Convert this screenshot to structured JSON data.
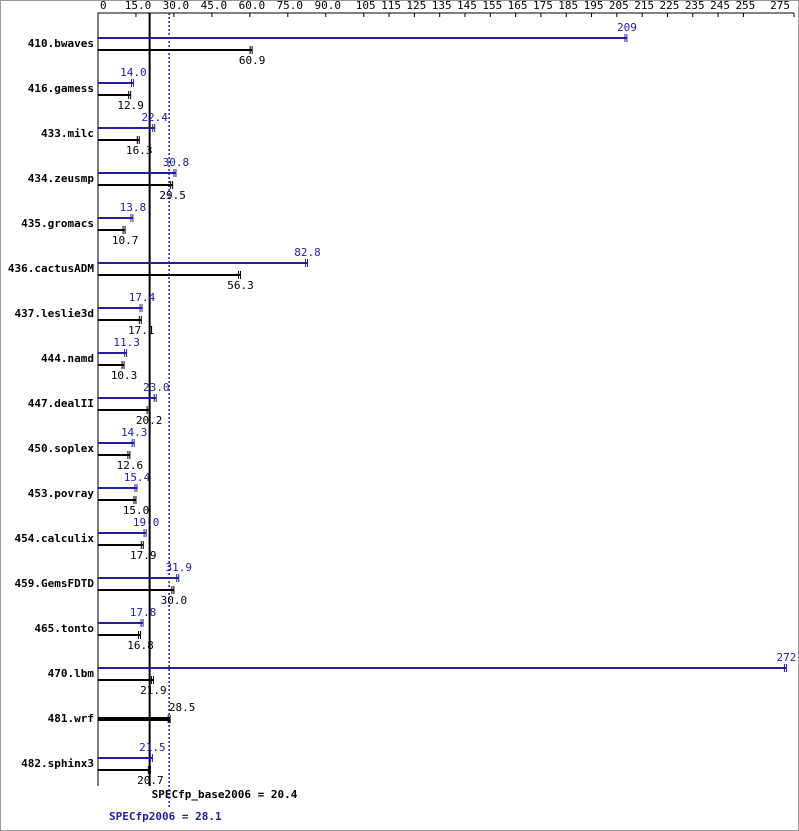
{
  "chart_data": {
    "type": "bar",
    "categories": [
      "410.bwaves",
      "416.gamess",
      "433.milc",
      "434.zeusmp",
      "435.gromacs",
      "436.cactusADM",
      "437.leslie3d",
      "444.namd",
      "447.dealII",
      "450.soplex",
      "453.povray",
      "454.calculix",
      "459.GemsFDTD",
      "465.tonto",
      "470.lbm",
      "481.wrf",
      "482.sphinx3"
    ],
    "series": [
      {
        "color": "#1f1fa0",
        "values": [
          209,
          14.0,
          22.4,
          30.8,
          13.8,
          82.8,
          17.4,
          11.3,
          23.0,
          14.3,
          15.4,
          19.0,
          31.9,
          17.8,
          272,
          null,
          21.5
        ],
        "value_labels": [
          "209",
          "14.0",
          "22.4",
          "30.8",
          "13.8",
          "82.8",
          "17.4",
          "11.3",
          "23.0",
          "14.3",
          "15.4",
          "19.0",
          "31.9",
          "17.8",
          "272",
          null,
          "21.5"
        ]
      },
      {
        "color": "#000000",
        "values": [
          60.9,
          12.9,
          16.3,
          29.5,
          10.7,
          56.3,
          17.1,
          10.3,
          20.2,
          12.6,
          15.0,
          17.9,
          30.0,
          16.8,
          21.9,
          28.5,
          20.7
        ],
        "value_labels": [
          "60.9",
          "12.9",
          "16.3",
          "29.5",
          "10.7",
          "56.3",
          "17.1",
          "10.3",
          "20.2",
          "12.6",
          "15.0",
          "17.9",
          "30.0",
          "16.8",
          "21.9",
          "28.5",
          "20.7"
        ]
      }
    ],
    "xlim": [
      0,
      275
    ],
    "xticks": [
      0,
      {
        "value": 15,
        "label": "15.0"
      },
      {
        "value": 30,
        "label": "30.0"
      },
      {
        "value": 45,
        "label": "45.0"
      },
      {
        "value": 60,
        "label": "60.0"
      },
      {
        "value": 75,
        "label": "75.0"
      },
      {
        "value": 90,
        "label": "90.0"
      },
      105,
      115,
      125,
      135,
      145,
      155,
      165,
      175,
      185,
      195,
      205,
      215,
      225,
      235,
      245,
      255,
      275
    ],
    "reference_lines": [
      {
        "value": 20.4,
        "label": "SPECfp_base2006 = 20.4",
        "color": "#000000",
        "style": "solid"
      },
      {
        "value": 28.1,
        "label": "SPECfp2006 = 28.1",
        "color": "#1f1fa0",
        "style": "dotted"
      }
    ]
  }
}
